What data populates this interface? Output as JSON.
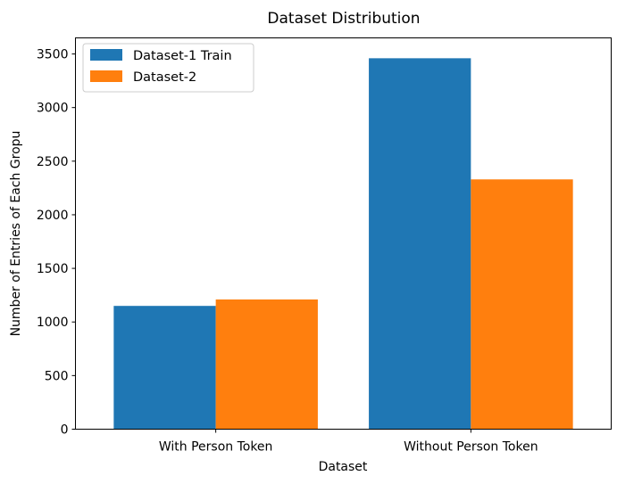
{
  "chart_data": {
    "type": "bar",
    "title": "Dataset Distribution",
    "xlabel": "Dataset",
    "ylabel": "Number of Entries of Each Gropu",
    "categories": [
      "With Person Token",
      "Without Person Token"
    ],
    "series": [
      {
        "name": "Dataset-1 Train",
        "values": [
          1150,
          3460
        ],
        "color": "#1f77b4"
      },
      {
        "name": "Dataset-2",
        "values": [
          1210,
          2330
        ],
        "color": "#ff7f0e"
      }
    ],
    "ylim": [
      0,
      3650
    ],
    "yticks": [
      0,
      500,
      1000,
      1500,
      2000,
      2500,
      3000,
      3500
    ],
    "grid": false,
    "legend_position": "top-left"
  }
}
